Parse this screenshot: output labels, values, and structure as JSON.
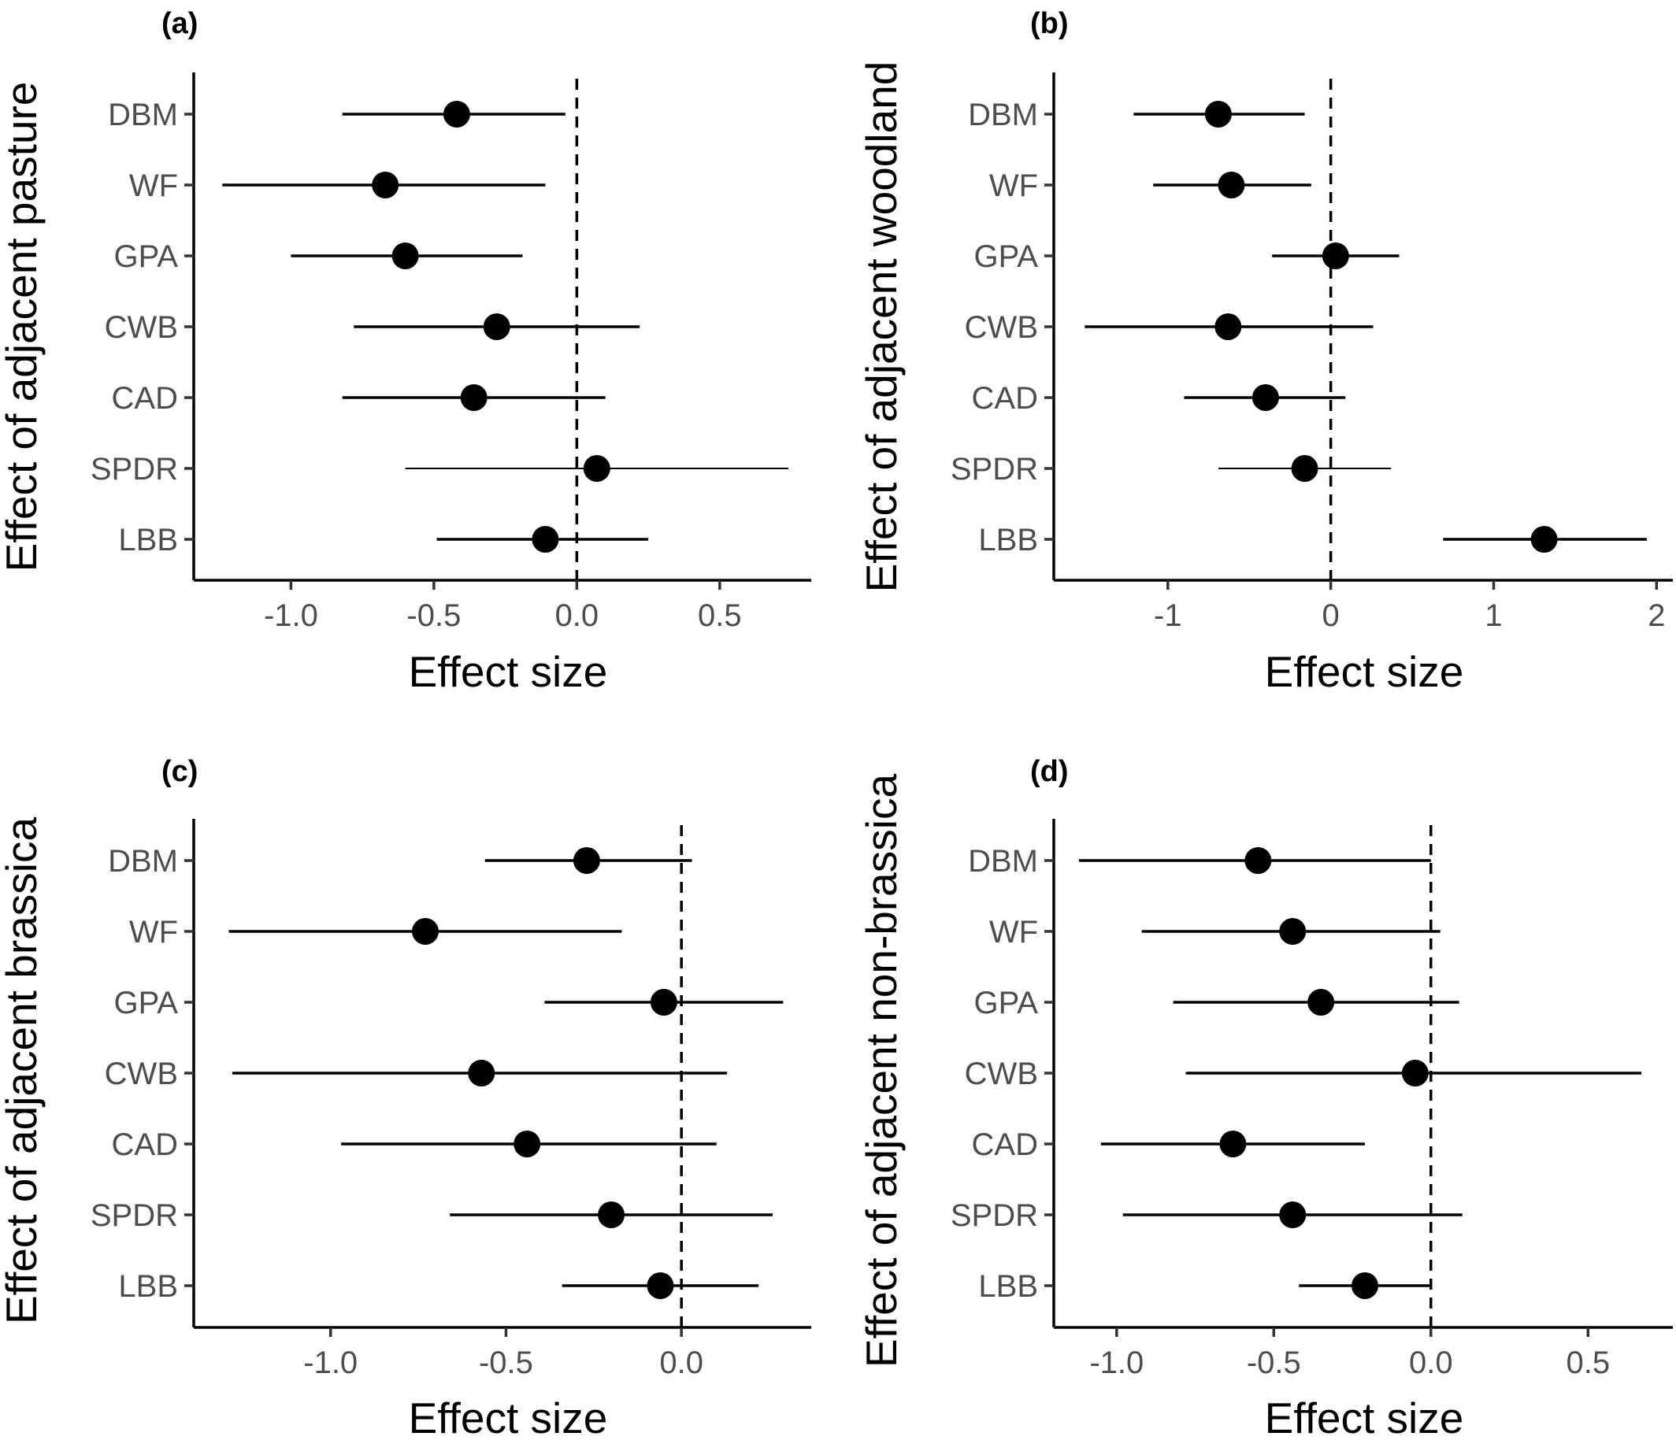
{
  "chart_data": [
    {
      "type": "forest",
      "tag": "(a)",
      "xlabel": "Effect size",
      "ylabel": "Effect of adjacent pasture",
      "xlim": [
        -1.34,
        0.82
      ],
      "xticks": [
        -1.0,
        -0.5,
        0.0,
        0.5
      ],
      "xtick_labels": [
        "-1.0",
        "-0.5",
        "0.0",
        "0.5"
      ],
      "reference_line": 0,
      "categories": [
        "DBM",
        "WF",
        "GPA",
        "CWB",
        "CAD",
        "SPDR",
        "LBB"
      ],
      "estimates": [
        -0.42,
        -0.67,
        -0.6,
        -0.28,
        -0.36,
        0.07,
        -0.11
      ],
      "ci_low": [
        -0.82,
        -1.24,
        -1.0,
        -0.78,
        -0.82,
        -0.6,
        -0.49
      ],
      "ci_high": [
        -0.04,
        -0.11,
        -0.19,
        0.22,
        0.1,
        0.74,
        0.25
      ],
      "thin_ci": [
        false,
        false,
        false,
        false,
        false,
        true,
        false
      ]
    },
    {
      "type": "forest",
      "tag": "(b)",
      "xlabel": "Effect size",
      "ylabel": "Effect of adjacent woodland",
      "xlim": [
        -1.7,
        2.1
      ],
      "xticks": [
        -1,
        0,
        1,
        2
      ],
      "xtick_labels": [
        "-1",
        "0",
        "1",
        "2"
      ],
      "reference_line": 0,
      "categories": [
        "DBM",
        "WF",
        "GPA",
        "CWB",
        "CAD",
        "SPDR",
        "LBB"
      ],
      "estimates": [
        -0.69,
        -0.61,
        0.03,
        -0.63,
        -0.4,
        -0.16,
        1.31
      ],
      "ci_low": [
        -1.21,
        -1.09,
        -0.36,
        -1.51,
        -0.9,
        -0.69,
        0.69
      ],
      "ci_high": [
        -0.16,
        -0.12,
        0.42,
        0.26,
        0.09,
        0.37,
        1.94
      ],
      "thin_ci": [
        false,
        false,
        false,
        false,
        false,
        true,
        false
      ]
    },
    {
      "type": "forest",
      "tag": "(c)",
      "xlabel": "Effect size",
      "ylabel": "Effect of adjacent brassica",
      "xlim": [
        -1.39,
        0.37
      ],
      "xticks": [
        -1.0,
        -0.5,
        0.0
      ],
      "xtick_labels": [
        "-1.0",
        "-0.5",
        "0.0"
      ],
      "reference_line": 0,
      "categories": [
        "DBM",
        "WF",
        "GPA",
        "CWB",
        "CAD",
        "SPDR",
        "LBB"
      ],
      "estimates": [
        -0.27,
        -0.73,
        -0.05,
        -0.57,
        -0.44,
        -0.2,
        -0.06
      ],
      "ci_low": [
        -0.56,
        -1.29,
        -0.39,
        -1.28,
        -0.97,
        -0.66,
        -0.34
      ],
      "ci_high": [
        0.03,
        -0.17,
        0.29,
        0.13,
        0.1,
        0.26,
        0.22
      ],
      "thin_ci": [
        false,
        false,
        false,
        false,
        false,
        false,
        false
      ]
    },
    {
      "type": "forest",
      "tag": "(d)",
      "xlabel": "Effect size",
      "ylabel": "Effect of adjacent non-brassica",
      "xlim": [
        -1.2,
        0.77
      ],
      "xticks": [
        -1.0,
        -0.5,
        0.0,
        0.5
      ],
      "xtick_labels": [
        "-1.0",
        "-0.5",
        "0.0",
        "0.5"
      ],
      "reference_line": 0,
      "categories": [
        "DBM",
        "WF",
        "GPA",
        "CWB",
        "CAD",
        "SPDR",
        "LBB"
      ],
      "estimates": [
        -0.55,
        -0.44,
        -0.35,
        -0.05,
        -0.63,
        -0.44,
        -0.21
      ],
      "ci_low": [
        -1.12,
        -0.92,
        -0.82,
        -0.78,
        -1.05,
        -0.98,
        -0.42
      ],
      "ci_high": [
        0.0,
        0.03,
        0.09,
        0.67,
        -0.21,
        0.1,
        0.0
      ],
      "thin_ci": [
        false,
        false,
        false,
        false,
        false,
        false,
        false
      ]
    }
  ]
}
